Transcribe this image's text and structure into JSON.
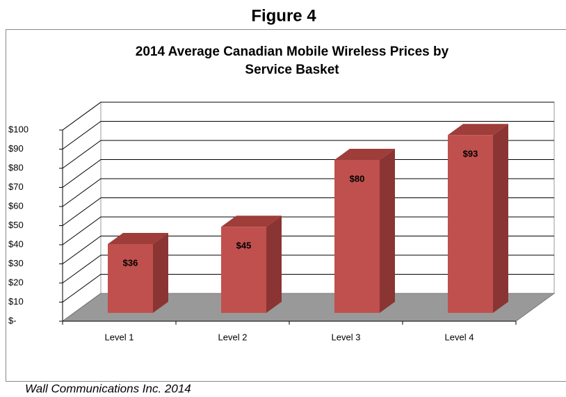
{
  "heading": "Figure 4",
  "source": "Wall Communications Inc. 2014",
  "chart_data": {
    "type": "bar3d",
    "title": "2014 Average Canadian Mobile Wireless Prices by Service Basket",
    "categories": [
      "Level 1",
      "Level 2",
      "Level 3",
      "Level 4"
    ],
    "values": [
      36,
      45,
      80,
      93
    ],
    "value_labels": [
      "$36",
      "$45",
      "$80",
      "$93"
    ],
    "color": "#c0504d",
    "ylim": [
      0,
      100
    ],
    "yticks": [
      {
        "value": 0,
        "label": "$-"
      },
      {
        "value": 10,
        "label": "$10"
      },
      {
        "value": 20,
        "label": "$20"
      },
      {
        "value": 30,
        "label": "$30"
      },
      {
        "value": 40,
        "label": "$40"
      },
      {
        "value": 50,
        "label": "$50"
      },
      {
        "value": 60,
        "label": "$60"
      },
      {
        "value": 70,
        "label": "$70"
      },
      {
        "value": 80,
        "label": "$80"
      },
      {
        "value": 90,
        "label": "$90"
      },
      {
        "value": 100,
        "label": "$100"
      }
    ],
    "grid": true
  }
}
